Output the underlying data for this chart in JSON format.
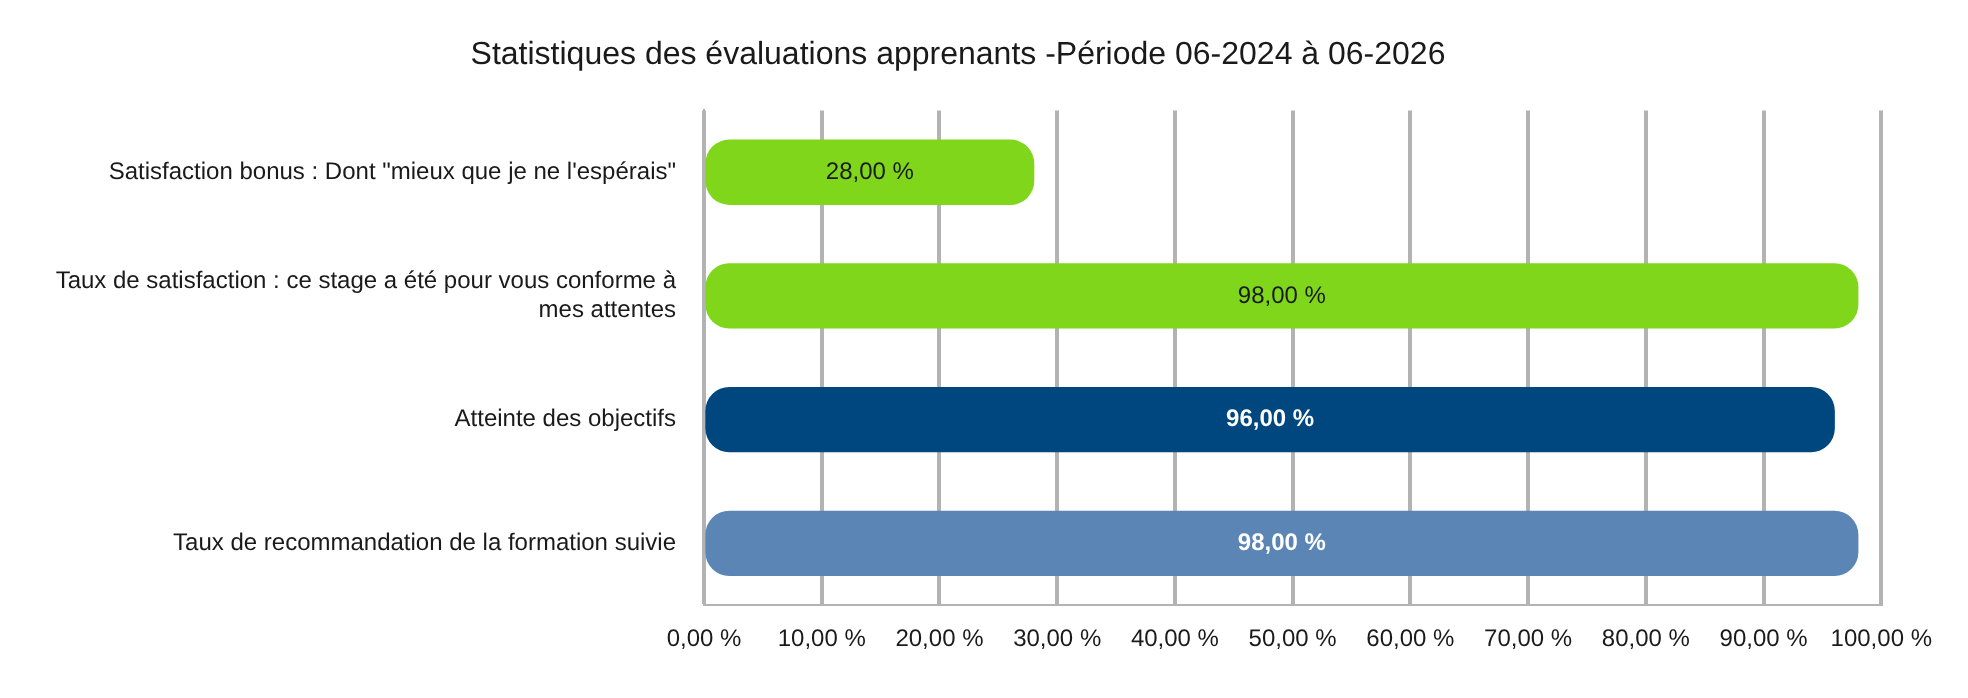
{
  "chart_data": {
    "type": "bar",
    "orientation": "horizontal",
    "title": "Statistiques des évaluations apprenants -Période 06-2024 à 06-2026",
    "categories": [
      "Satisfaction bonus : Dont \"mieux que je ne l'espérais\"",
      "Taux de satisfaction : ce stage a été pour vous conforme à mes attentes",
      "Atteinte des objectifs",
      "Taux de recommandation de la formation suivie"
    ],
    "values": [
      28,
      98,
      96,
      98
    ],
    "colors": [
      "#7fd61a",
      "#7fd61a",
      "#00467f",
      "#5b85b5"
    ],
    "value_labels": [
      "28,00 %",
      "98,00 %",
      "96,00 %",
      "98,00 %"
    ],
    "xlim": [
      0,
      100
    ],
    "xticks": [
      {
        "value": 0,
        "label": "0,00 %"
      },
      {
        "value": 10,
        "label": "10,00 %"
      },
      {
        "value": 20,
        "label": "20,00 %"
      },
      {
        "value": 30,
        "label": "30,00 %"
      },
      {
        "value": 40,
        "label": "40,00 %"
      },
      {
        "value": 50,
        "label": "50,00 %"
      },
      {
        "value": 60,
        "label": "60,00 %"
      },
      {
        "value": 70,
        "label": "70,00 %"
      },
      {
        "value": 80,
        "label": "80,00 %"
      },
      {
        "value": 90,
        "label": "90,00 %"
      },
      {
        "value": 100,
        "label": "100,00 %"
      }
    ],
    "grid": "x",
    "legend": false
  }
}
